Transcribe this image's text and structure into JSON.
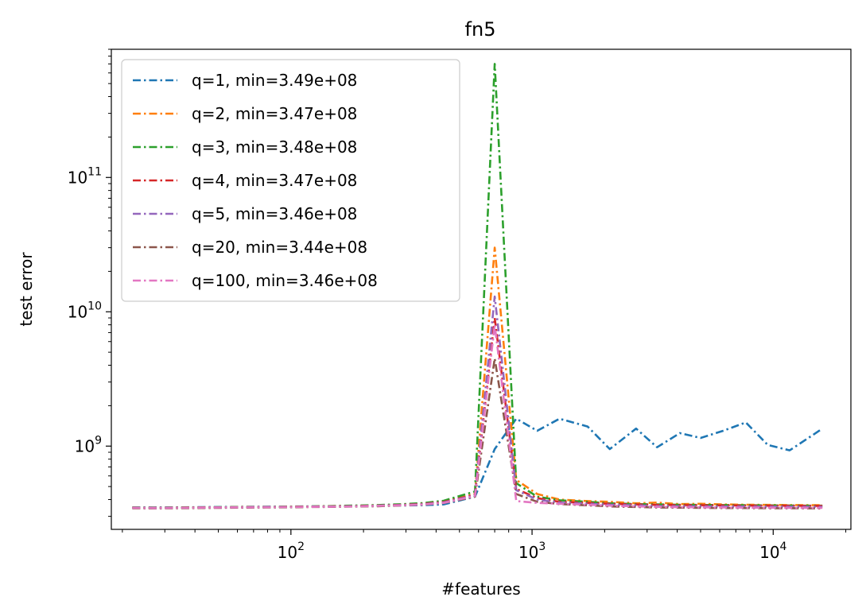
{
  "chart_data": {
    "type": "line",
    "title": "fn5",
    "xlabel": "#features",
    "ylabel": "test error",
    "xscale": "log",
    "yscale": "log",
    "xlim": [
      18,
      21000
    ],
    "ylim": [
      240000000,
      900000000000
    ],
    "x_ticks": [
      {
        "value": 100,
        "base": "10",
        "exp": "2"
      },
      {
        "value": 1000,
        "base": "10",
        "exp": "3"
      },
      {
        "value": 10000,
        "base": "10",
        "exp": "4"
      }
    ],
    "y_ticks": [
      {
        "value": 1000000000,
        "base": "10",
        "exp": "9"
      },
      {
        "value": 10000000000,
        "base": "10",
        "exp": "10"
      },
      {
        "value": 100000000000,
        "base": "10",
        "exp": "11"
      }
    ],
    "grid": false,
    "legend_position": "top-left",
    "line_style": "dash-dot",
    "x": [
      22,
      27,
      33,
      41,
      51,
      63,
      78,
      97,
      120,
      149,
      185,
      230,
      285,
      350,
      430,
      580,
      700,
      860,
      1050,
      1300,
      1700,
      2100,
      2700,
      3300,
      4100,
      5000,
      6200,
      7700,
      9500,
      11700,
      14500,
      16000
    ],
    "series": [
      {
        "name": "q=1, min=3.49e+08",
        "color": "#1f77b4",
        "values": [
          350000000,
          349000000,
          350000000,
          351000000,
          352000000,
          353000000,
          354000000,
          355000000,
          356000000,
          357000000,
          358000000,
          359000000,
          361000000,
          363000000,
          368000000,
          420000000,
          950000000,
          1600000000,
          1300000000,
          1600000000,
          1400000000,
          950000000,
          1350000000,
          980000000,
          1250000000,
          1150000000,
          1300000000,
          1500000000,
          1020000000,
          930000000,
          1200000000,
          1350000000
        ]
      },
      {
        "name": "q=2, min=3.47e+08",
        "color": "#ff7f0e",
        "values": [
          348000000,
          347000000,
          348000000,
          349000000,
          350000000,
          351000000,
          352000000,
          354000000,
          355000000,
          357000000,
          359000000,
          362000000,
          366000000,
          372000000,
          385000000,
          440000000,
          30000000000,
          560000000,
          440000000,
          400000000,
          390000000,
          385000000,
          375000000,
          380000000,
          370000000,
          372000000,
          368000000,
          366000000,
          365000000,
          364000000,
          363000000,
          363000000
        ]
      },
      {
        "name": "q=3, min=3.48e+08",
        "color": "#2ca02c",
        "values": [
          349000000,
          348000000,
          349000000,
          350000000,
          351000000,
          352000000,
          353000000,
          354000000,
          356000000,
          358000000,
          361000000,
          364000000,
          369000000,
          376000000,
          392000000,
          460000000,
          700000000000,
          530000000,
          420000000,
          395000000,
          385000000,
          375000000,
          370000000,
          368000000,
          366000000,
          365000000,
          364000000,
          363000000,
          362000000,
          361000000,
          360000000,
          360000000
        ]
      },
      {
        "name": "q=4, min=3.47e+08",
        "color": "#d62728",
        "values": [
          348000000,
          347000000,
          348000000,
          349000000,
          350000000,
          351000000,
          352000000,
          353000000,
          355000000,
          356000000,
          358000000,
          361000000,
          365000000,
          371000000,
          384000000,
          435000000,
          9000000000,
          480000000,
          410000000,
          385000000,
          378000000,
          372000000,
          368000000,
          365000000,
          364000000,
          363000000,
          362000000,
          361000000,
          360000000,
          360000000,
          359000000,
          359000000
        ]
      },
      {
        "name": "q=5, min=3.46e+08",
        "color": "#9467bd",
        "values": [
          347000000,
          346000000,
          347000000,
          348000000,
          349000000,
          350000000,
          351000000,
          352000000,
          354000000,
          355000000,
          357000000,
          360000000,
          364000000,
          369000000,
          381000000,
          430000000,
          13000000000,
          470000000,
          400000000,
          380000000,
          372000000,
          366000000,
          362000000,
          358000000,
          357000000,
          356000000,
          355000000,
          355000000,
          354000000,
          354000000,
          353000000,
          353000000
        ]
      },
      {
        "name": "q=20, min=3.44e+08",
        "color": "#8c564b",
        "values": [
          345000000,
          344000000,
          345000000,
          346000000,
          347000000,
          348000000,
          349000000,
          350000000,
          352000000,
          353000000,
          355000000,
          357000000,
          361000000,
          366000000,
          377000000,
          420000000,
          4500000000,
          440000000,
          385000000,
          370000000,
          362000000,
          356000000,
          352000000,
          349000000,
          348000000,
          347000000,
          346000000,
          346000000,
          345000000,
          345000000,
          344000000,
          344000000
        ]
      },
      {
        "name": "q=100, min=3.46e+08",
        "color": "#e377c2",
        "values": [
          347000000,
          346000000,
          347000000,
          348000000,
          349000000,
          350000000,
          351000000,
          352000000,
          353000000,
          354000000,
          356000000,
          359000000,
          362000000,
          367000000,
          378000000,
          425000000,
          8000000000,
          390000000,
          378000000,
          372000000,
          366000000,
          360000000,
          356000000,
          353000000,
          351000000,
          350000000,
          349000000,
          348000000,
          348000000,
          347000000,
          347000000,
          347000000
        ]
      }
    ]
  }
}
